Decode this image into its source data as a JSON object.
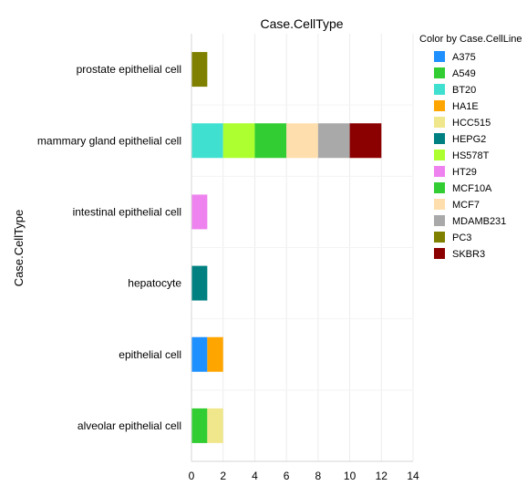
{
  "chart_data": {
    "type": "bar",
    "orientation": "horizontal",
    "stacked": true,
    "title": "Case.CellType",
    "xlabel": "",
    "ylabel": "Case.CellType",
    "xlim": [
      0,
      14
    ],
    "x_ticks": [
      "0",
      "2",
      "4",
      "6",
      "8",
      "10",
      "12",
      "14"
    ],
    "grid": true,
    "legend_position": "right",
    "legend_title": "Color by Case.CellLine",
    "categories": [
      "prostate epithelial cell",
      "mammary gland epithelial cell",
      "intestinal epithelial cell",
      "hepatocyte",
      "epithelial cell",
      "alveolar epithelial cell"
    ],
    "series": [
      {
        "name": "A375",
        "color": "#1e90ff",
        "values": [
          0,
          0,
          0,
          0,
          1,
          0
        ]
      },
      {
        "name": "A549",
        "color": "#32cd32",
        "values": [
          0,
          0,
          0,
          0,
          0,
          1
        ]
      },
      {
        "name": "BT20",
        "color": "#40e0d0",
        "values": [
          0,
          2,
          0,
          0,
          0,
          0
        ]
      },
      {
        "name": "HA1E",
        "color": "#ffa500",
        "values": [
          0,
          0,
          0,
          0,
          1,
          0
        ]
      },
      {
        "name": "HCC515",
        "color": "#f0e68c",
        "values": [
          0,
          0,
          0,
          0,
          0,
          1
        ]
      },
      {
        "name": "HEPG2",
        "color": "#008080",
        "values": [
          0,
          0,
          0,
          1,
          0,
          0
        ]
      },
      {
        "name": "HS578T",
        "color": "#adff2f",
        "values": [
          0,
          2,
          0,
          0,
          0,
          0
        ]
      },
      {
        "name": "HT29",
        "color": "#ee82ee",
        "values": [
          0,
          0,
          1,
          0,
          0,
          0
        ]
      },
      {
        "name": "MCF10A",
        "color": "#32cd32",
        "values": [
          0,
          2,
          0,
          0,
          0,
          0
        ]
      },
      {
        "name": "MCF7",
        "color": "#ffdead",
        "values": [
          0,
          2,
          0,
          0,
          0,
          0
        ]
      },
      {
        "name": "MDAMB231",
        "color": "#a9a9a9",
        "values": [
          0,
          2,
          0,
          0,
          0,
          0
        ]
      },
      {
        "name": "PC3",
        "color": "#808000",
        "values": [
          1,
          0,
          0,
          0,
          0,
          0
        ]
      },
      {
        "name": "SKBR3",
        "color": "#8b0000",
        "values": [
          0,
          2,
          0,
          0,
          0,
          0
        ]
      }
    ]
  }
}
